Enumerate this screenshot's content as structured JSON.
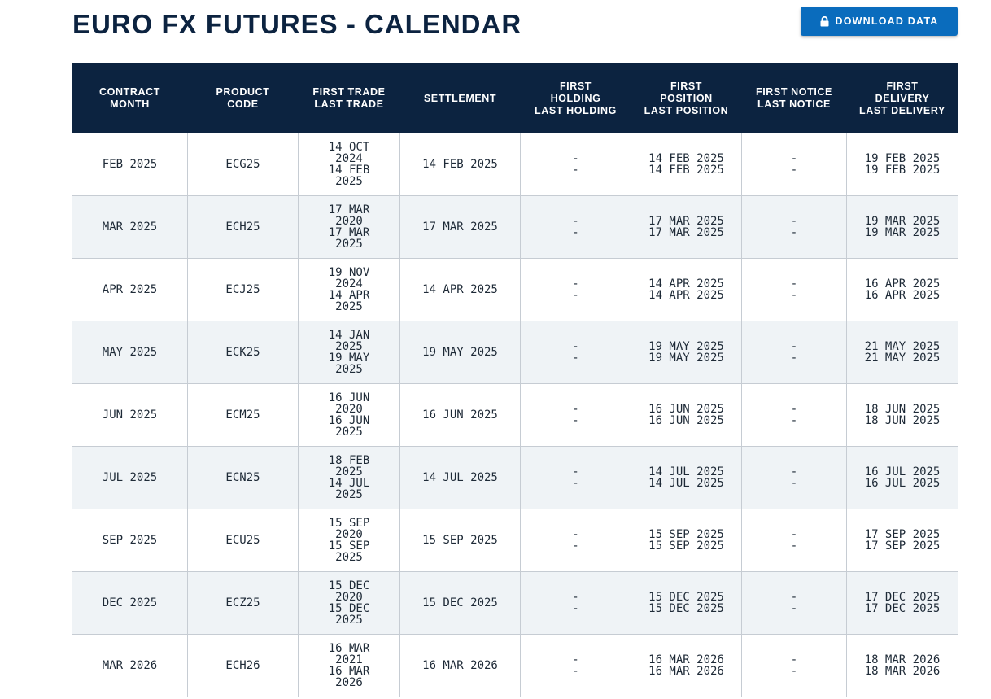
{
  "page": {
    "title": "EURO FX FUTURES - CALENDAR",
    "download_label": "DOWNLOAD DATA",
    "download_icon": "lock-icon"
  },
  "table": {
    "headers": [
      "CONTRACT\nMONTH",
      "PRODUCT\nCODE",
      "FIRST TRADE\nLAST TRADE",
      "SETTLEMENT",
      "FIRST\nHOLDING\nLAST HOLDING",
      "FIRST\nPOSITION\nLAST POSITION",
      "FIRST NOTICE\nLAST NOTICE",
      "FIRST\nDELIVERY\nLAST DELIVERY"
    ],
    "rows": [
      {
        "month": "FEB 2025",
        "code": "ECG25",
        "first_trade": "14 OCT 2024",
        "last_trade": "14 FEB 2025",
        "settlement": "14 FEB 2025",
        "first_holding": "-",
        "last_holding": "-",
        "first_position": "14 FEB 2025",
        "last_position": "14 FEB 2025",
        "first_notice": "-",
        "last_notice": "-",
        "first_delivery": "19 FEB 2025",
        "last_delivery": "19 FEB 2025"
      },
      {
        "month": "MAR 2025",
        "code": "ECH25",
        "first_trade": "17 MAR 2020",
        "last_trade": "17 MAR 2025",
        "settlement": "17 MAR 2025",
        "first_holding": "-",
        "last_holding": "-",
        "first_position": "17 MAR 2025",
        "last_position": "17 MAR 2025",
        "first_notice": "-",
        "last_notice": "-",
        "first_delivery": "19 MAR 2025",
        "last_delivery": "19 MAR 2025"
      },
      {
        "month": "APR 2025",
        "code": "ECJ25",
        "first_trade": "19 NOV 2024",
        "last_trade": "14 APR 2025",
        "settlement": "14 APR 2025",
        "first_holding": "-",
        "last_holding": "-",
        "first_position": "14 APR 2025",
        "last_position": "14 APR 2025",
        "first_notice": "-",
        "last_notice": "-",
        "first_delivery": "16 APR 2025",
        "last_delivery": "16 APR 2025"
      },
      {
        "month": "MAY 2025",
        "code": "ECK25",
        "first_trade": "14 JAN 2025",
        "last_trade": "19 MAY 2025",
        "settlement": "19 MAY 2025",
        "first_holding": "-",
        "last_holding": "-",
        "first_position": "19 MAY 2025",
        "last_position": "19 MAY 2025",
        "first_notice": "-",
        "last_notice": "-",
        "first_delivery": "21 MAY 2025",
        "last_delivery": "21 MAY 2025"
      },
      {
        "month": "JUN 2025",
        "code": "ECM25",
        "first_trade": "16 JUN 2020",
        "last_trade": "16 JUN 2025",
        "settlement": "16 JUN 2025",
        "first_holding": "-",
        "last_holding": "-",
        "first_position": "16 JUN 2025",
        "last_position": "16 JUN 2025",
        "first_notice": "-",
        "last_notice": "-",
        "first_delivery": "18 JUN 2025",
        "last_delivery": "18 JUN 2025"
      },
      {
        "month": "JUL 2025",
        "code": "ECN25",
        "first_trade": "18 FEB 2025",
        "last_trade": "14 JUL 2025",
        "settlement": "14 JUL 2025",
        "first_holding": "-",
        "last_holding": "-",
        "first_position": "14 JUL 2025",
        "last_position": "14 JUL 2025",
        "first_notice": "-",
        "last_notice": "-",
        "first_delivery": "16 JUL 2025",
        "last_delivery": "16 JUL 2025"
      },
      {
        "month": "SEP 2025",
        "code": "ECU25",
        "first_trade": "15 SEP 2020",
        "last_trade": "15 SEP 2025",
        "settlement": "15 SEP 2025",
        "first_holding": "-",
        "last_holding": "-",
        "first_position": "15 SEP 2025",
        "last_position": "15 SEP 2025",
        "first_notice": "-",
        "last_notice": "-",
        "first_delivery": "17 SEP 2025",
        "last_delivery": "17 SEP 2025"
      },
      {
        "month": "DEC 2025",
        "code": "ECZ25",
        "first_trade": "15 DEC 2020",
        "last_trade": "15 DEC 2025",
        "settlement": "15 DEC 2025",
        "first_holding": "-",
        "last_holding": "-",
        "first_position": "15 DEC 2025",
        "last_position": "15 DEC 2025",
        "first_notice": "-",
        "last_notice": "-",
        "first_delivery": "17 DEC 2025",
        "last_delivery": "17 DEC 2025"
      },
      {
        "month": "MAR 2026",
        "code": "ECH26",
        "first_trade": "16 MAR 2021",
        "last_trade": "16 MAR 2026",
        "settlement": "16 MAR 2026",
        "first_holding": "-",
        "last_holding": "-",
        "first_position": "16 MAR 2026",
        "last_position": "16 MAR 2026",
        "first_notice": "-",
        "last_notice": "-",
        "first_delivery": "18 MAR 2026",
        "last_delivery": "18 MAR 2026"
      }
    ]
  },
  "colors": {
    "header_bg": "#0c2340",
    "button_bg": "#0a6cbd",
    "stripe_bg": "#eff3f6"
  }
}
